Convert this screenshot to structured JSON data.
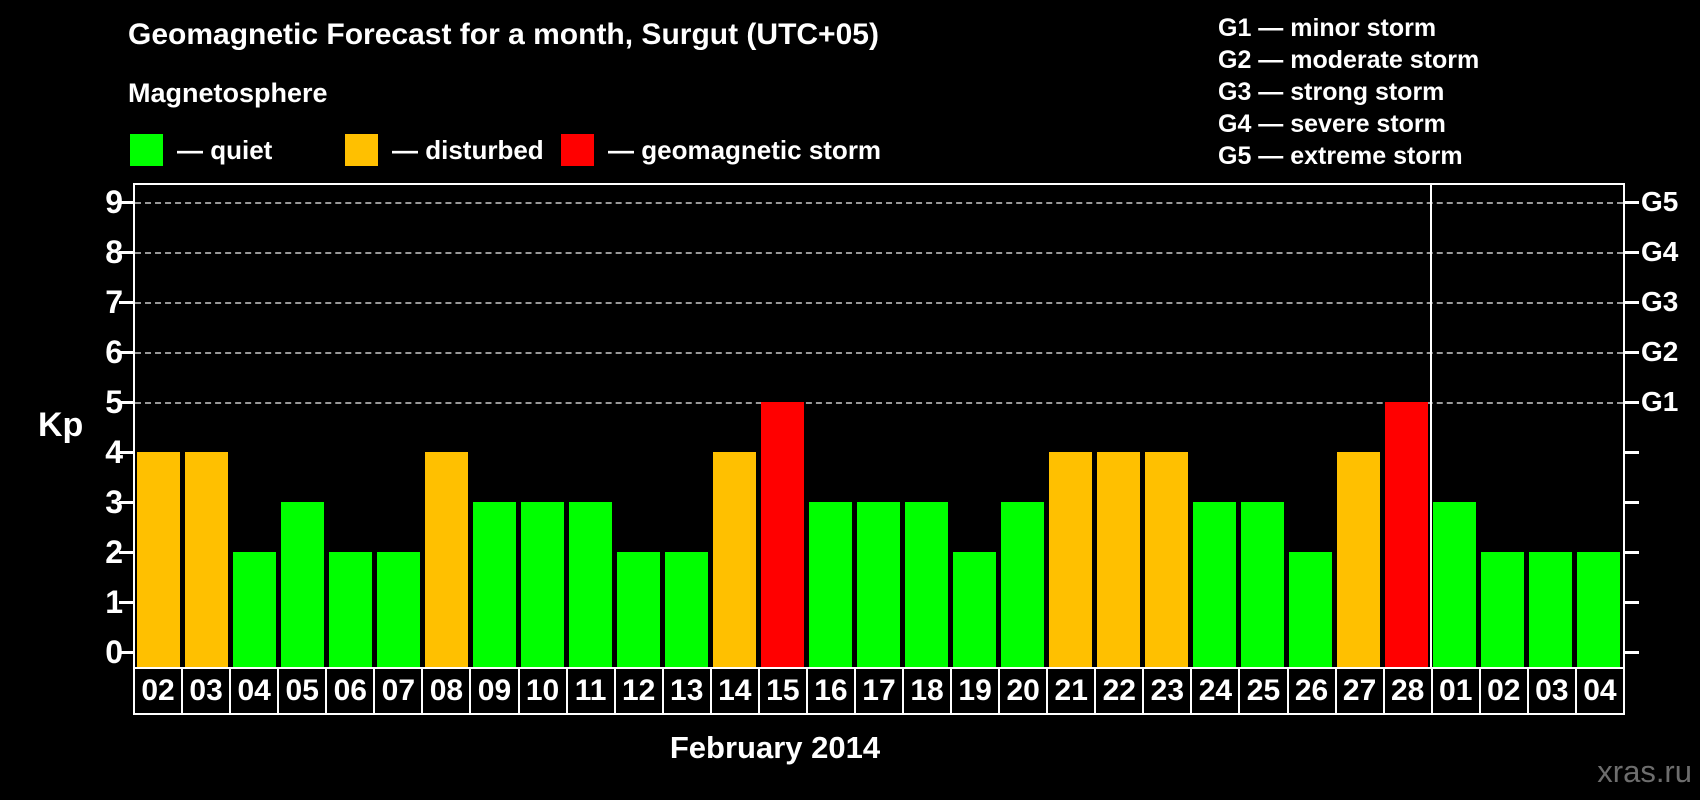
{
  "title": "Geomagnetic Forecast for a month, Surgut (UTC+05)",
  "magnetosphere_legend": {
    "title": "Magnetosphere",
    "items": [
      {
        "label": "— quiet",
        "state": "quiet",
        "color": "#00ff00"
      },
      {
        "label": "— disturbed",
        "state": "disturbed",
        "color": "#ffc000"
      },
      {
        "label": "— geomagnetic storm",
        "state": "storm",
        "color": "#ff0000"
      }
    ]
  },
  "storm_scale_legend": {
    "items": [
      "G1 — minor storm",
      "G2 — moderate storm",
      "G3 — strong storm",
      "G4 — severe storm",
      "G5 — extreme storm"
    ]
  },
  "chart_data": {
    "type": "bar",
    "title": "Geomagnetic Forecast for a month, Surgut (UTC+05)",
    "xlabel": "February 2014",
    "ylabel": "Kp",
    "ylim": [
      0,
      9.4
    ],
    "y_ticks": [
      0,
      1,
      2,
      3,
      4,
      5,
      6,
      7,
      8,
      9
    ],
    "gridlines_at_kp": [
      5,
      6,
      7,
      8,
      9
    ],
    "grid_style": "dashed",
    "right_axis": {
      "labels": [
        "G1",
        "G2",
        "G3",
        "G4",
        "G5"
      ],
      "at_kp": [
        5,
        6,
        7,
        8,
        9
      ]
    },
    "state_colors": {
      "quiet": "#00ff00",
      "disturbed": "#ffc000",
      "storm": "#ff0000"
    },
    "month_separator_after_index": 26,
    "bars": [
      {
        "day": "02",
        "kp": 4,
        "state": "disturbed"
      },
      {
        "day": "03",
        "kp": 4,
        "state": "disturbed"
      },
      {
        "day": "04",
        "kp": 2,
        "state": "quiet"
      },
      {
        "day": "05",
        "kp": 3,
        "state": "quiet"
      },
      {
        "day": "06",
        "kp": 2,
        "state": "quiet"
      },
      {
        "day": "07",
        "kp": 2,
        "state": "quiet"
      },
      {
        "day": "08",
        "kp": 4,
        "state": "disturbed"
      },
      {
        "day": "09",
        "kp": 3,
        "state": "quiet"
      },
      {
        "day": "10",
        "kp": 3,
        "state": "quiet"
      },
      {
        "day": "11",
        "kp": 3,
        "state": "quiet"
      },
      {
        "day": "12",
        "kp": 2,
        "state": "quiet"
      },
      {
        "day": "13",
        "kp": 2,
        "state": "quiet"
      },
      {
        "day": "14",
        "kp": 4,
        "state": "disturbed"
      },
      {
        "day": "15",
        "kp": 5,
        "state": "storm"
      },
      {
        "day": "16",
        "kp": 3,
        "state": "quiet"
      },
      {
        "day": "17",
        "kp": 3,
        "state": "quiet"
      },
      {
        "day": "18",
        "kp": 3,
        "state": "quiet"
      },
      {
        "day": "19",
        "kp": 2,
        "state": "quiet"
      },
      {
        "day": "20",
        "kp": 3,
        "state": "quiet"
      },
      {
        "day": "21",
        "kp": 4,
        "state": "disturbed"
      },
      {
        "day": "22",
        "kp": 4,
        "state": "disturbed"
      },
      {
        "day": "23",
        "kp": 4,
        "state": "disturbed"
      },
      {
        "day": "24",
        "kp": 3,
        "state": "quiet"
      },
      {
        "day": "25",
        "kp": 3,
        "state": "quiet"
      },
      {
        "day": "26",
        "kp": 2,
        "state": "quiet"
      },
      {
        "day": "27",
        "kp": 4,
        "state": "disturbed"
      },
      {
        "day": "28",
        "kp": 5,
        "state": "storm"
      },
      {
        "day": "01",
        "kp": 3,
        "state": "quiet"
      },
      {
        "day": "02",
        "kp": 2,
        "state": "quiet"
      },
      {
        "day": "03",
        "kp": 2,
        "state": "quiet"
      },
      {
        "day": "04",
        "kp": 2,
        "state": "quiet"
      }
    ]
  },
  "watermark": "xras.ru"
}
